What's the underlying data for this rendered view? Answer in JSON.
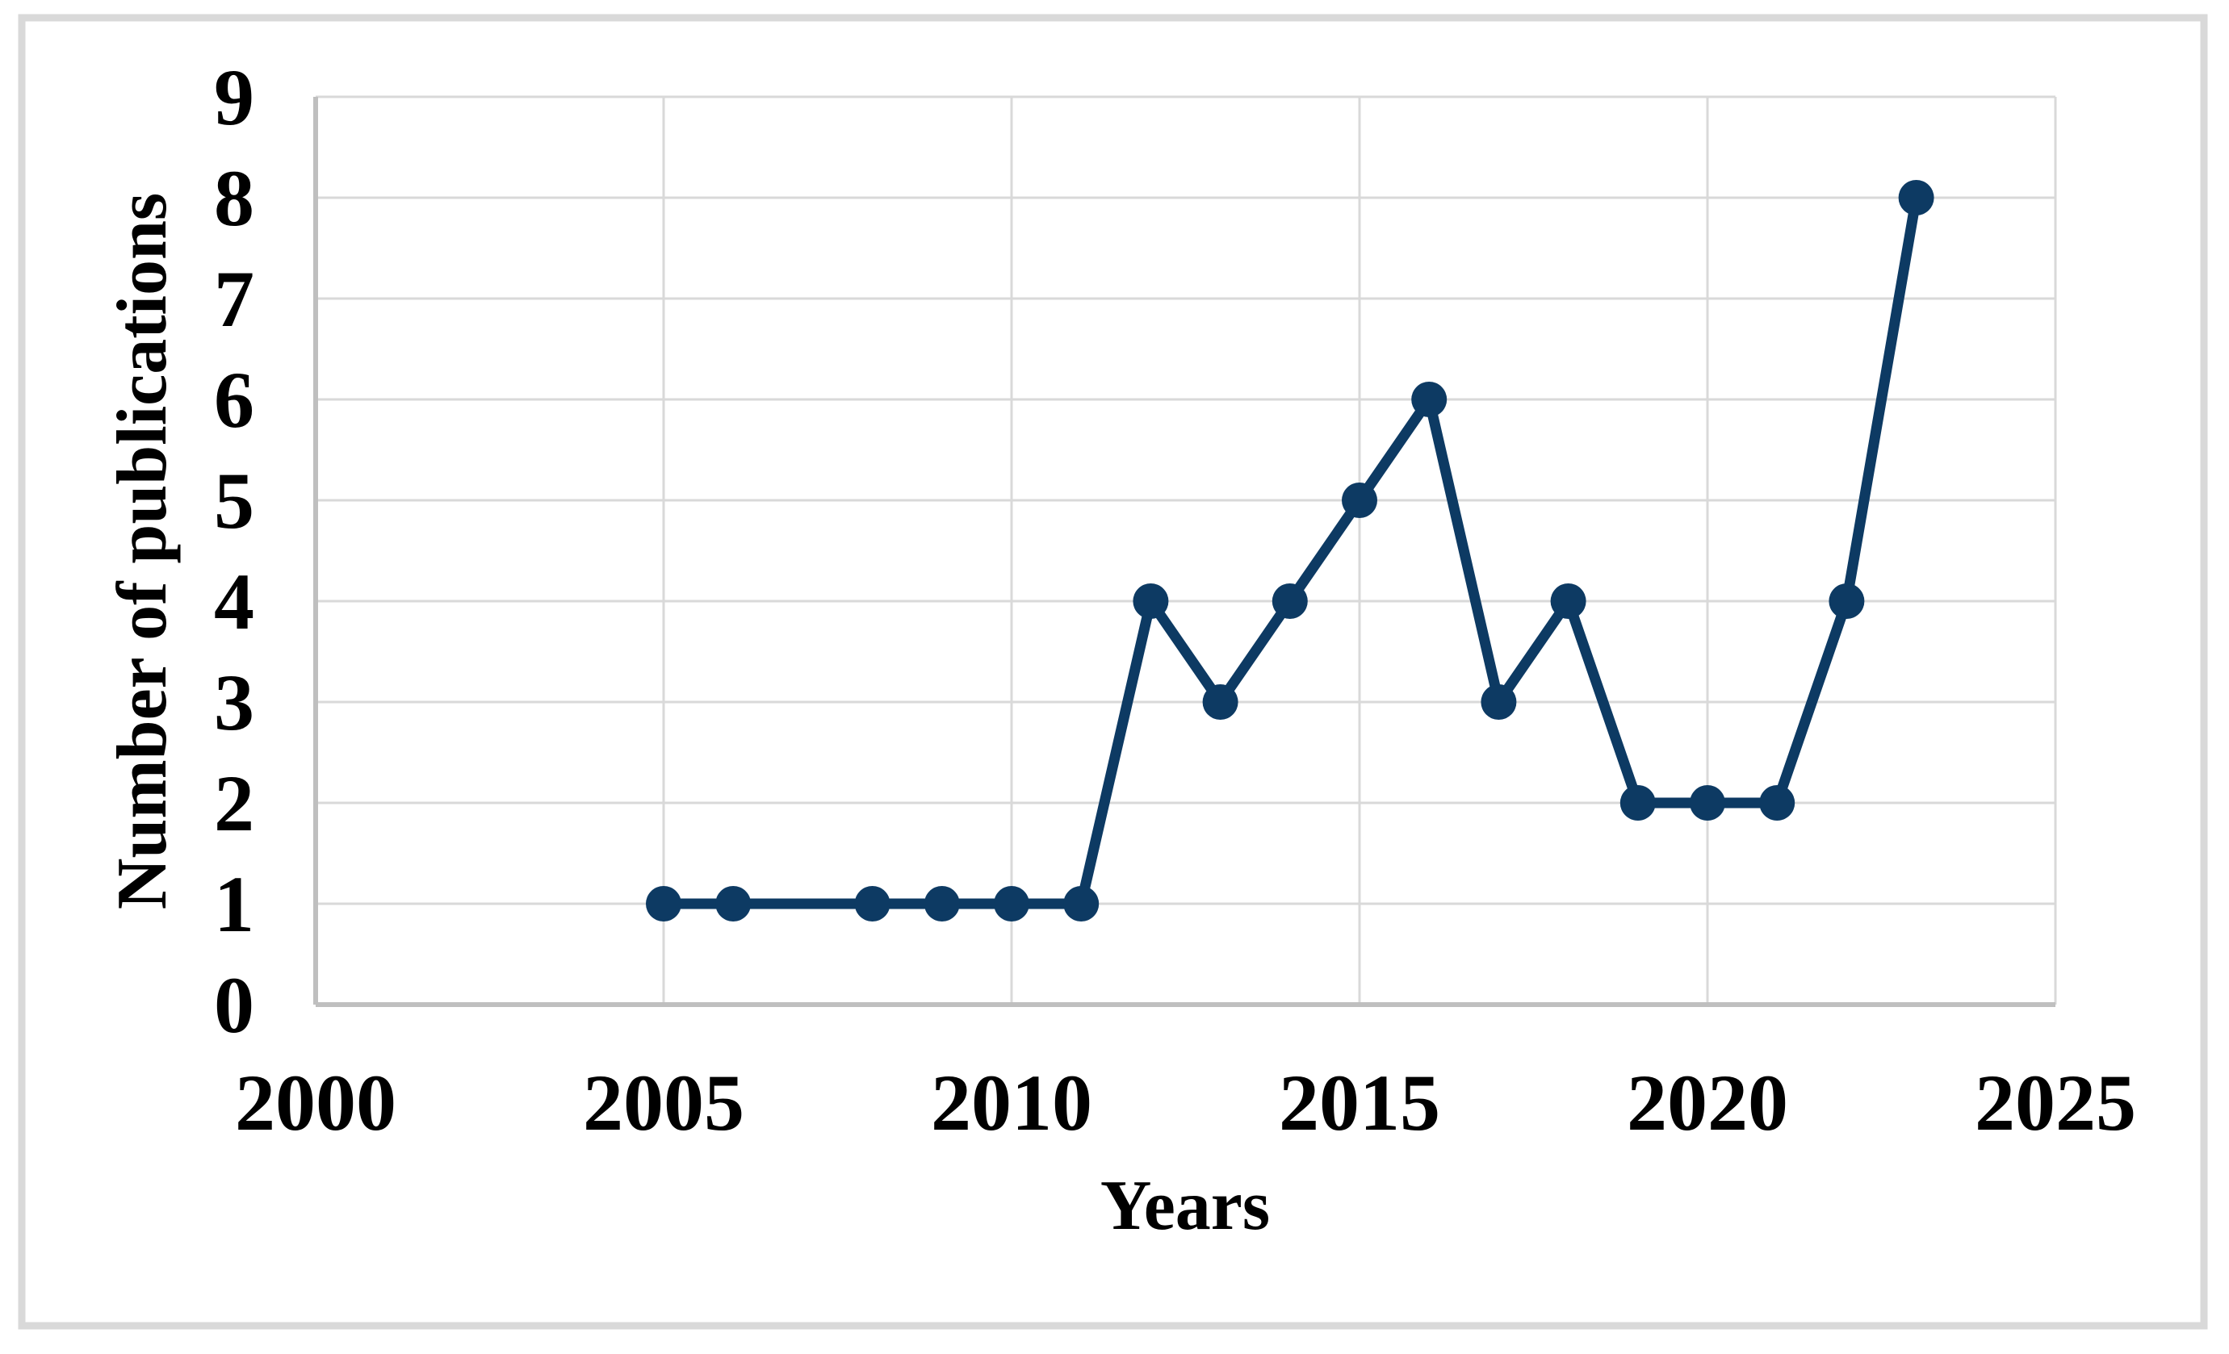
{
  "chart_data": {
    "type": "line",
    "title": "",
    "xlabel": "Years",
    "ylabel": "Number of publications",
    "x": [
      2005,
      2006,
      2008,
      2009,
      2010,
      2011,
      2012,
      2013,
      2014,
      2015,
      2016,
      2017,
      2018,
      2019,
      2020,
      2021,
      2022,
      2023
    ],
    "values": [
      1,
      1,
      1,
      1,
      1,
      1,
      4,
      3,
      4,
      5,
      6,
      3,
      4,
      2,
      2,
      2,
      4,
      8
    ],
    "xlim": [
      2000,
      2025
    ],
    "ylim": [
      0,
      9
    ],
    "xtick_step": 5,
    "ytick_step": 1,
    "xtick_labels": [
      "2000",
      "2005",
      "2010",
      "2015",
      "2020",
      "2025"
    ],
    "ytick_labels": [
      "0",
      "1",
      "2",
      "3",
      "4",
      "5",
      "6",
      "7",
      "8",
      "9"
    ],
    "grid": true,
    "legend": "none",
    "marker": "circle",
    "colors": {
      "series": "#0d3a63",
      "gridline": "#d9d9d9",
      "axis_line": "#bfbfbf",
      "figure_border": "#d9d9d9",
      "text": "#000000",
      "background": "#ffffff"
    }
  }
}
